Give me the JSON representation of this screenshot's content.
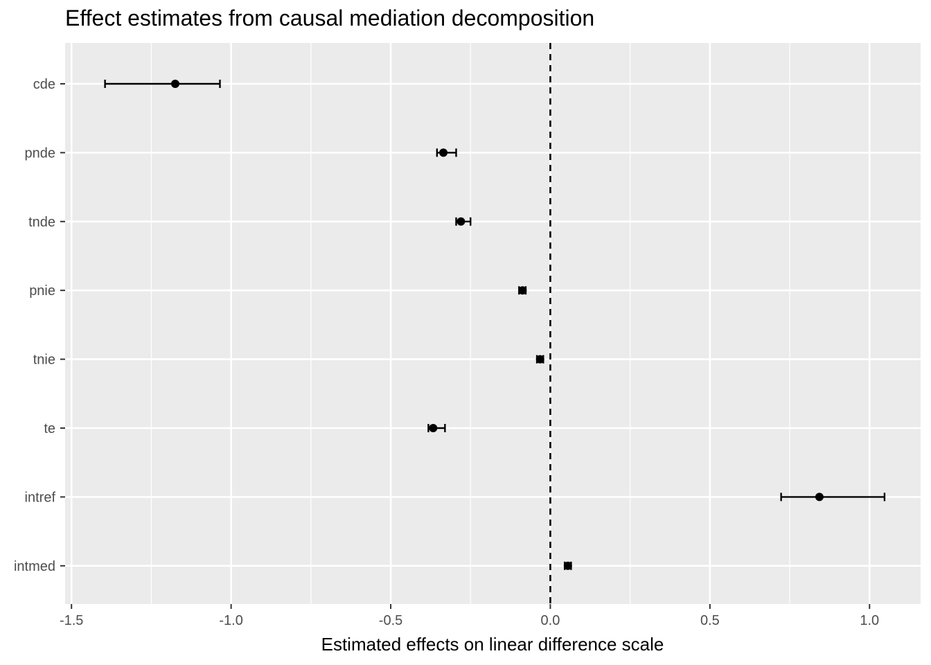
{
  "chart_data": {
    "type": "scatter",
    "title": "Effect estimates from causal mediation decomposition",
    "xlabel": "Estimated effects on linear difference scale",
    "ylabel": "",
    "xlim": [
      -1.52,
      1.16
    ],
    "x_ticks": [
      -1.5,
      -1.0,
      -0.5,
      0.0,
      0.5,
      1.0
    ],
    "x_tick_labels": [
      "-1.5",
      "-1.0",
      "-0.5",
      "0.0",
      "0.5",
      "1.0"
    ],
    "reference_line": {
      "x": 0,
      "style": "dashed"
    },
    "grid": true,
    "background": "#ebebeb",
    "grid_color": "#ffffff",
    "point_color": "#000000",
    "points": [
      {
        "label": "cde",
        "estimate": -1.175,
        "lower": -1.395,
        "upper": -1.035
      },
      {
        "label": "pnde",
        "estimate": -0.335,
        "lower": -0.355,
        "upper": -0.295
      },
      {
        "label": "tnde",
        "estimate": -0.28,
        "lower": -0.295,
        "upper": -0.25
      },
      {
        "label": "pnie",
        "estimate": -0.087,
        "lower": -0.098,
        "upper": -0.077
      },
      {
        "label": "tnie",
        "estimate": -0.032,
        "lower": -0.042,
        "upper": -0.022
      },
      {
        "label": "te",
        "estimate": -0.367,
        "lower": -0.382,
        "upper": -0.33
      },
      {
        "label": "intref",
        "estimate": 0.843,
        "lower": 0.723,
        "upper": 1.047
      },
      {
        "label": "intmed",
        "estimate": 0.055,
        "lower": 0.045,
        "upper": 0.065
      }
    ]
  }
}
